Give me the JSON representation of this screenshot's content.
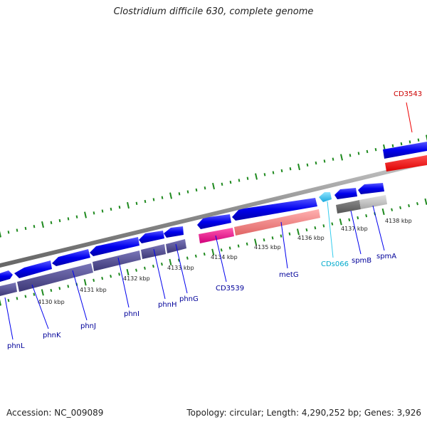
{
  "title": "Clostridium difficile 630, complete genome",
  "footer": {
    "accession": "Accession: NC_009089",
    "summary": "Topology: circular; Length: 4,290,252 bp; Genes: 3,926"
  },
  "colors": {
    "cds": "#0000ee",
    "rna": "#ff0000",
    "tick": "#1f8a1f",
    "backbone": "#8a8a8a",
    "label_blue": "#000099",
    "label_red": "#cc0000",
    "label_cyan": "#00aacc"
  },
  "scale_labels": [
    "4130 kbp",
    "4131 kbp",
    "4132 kbp",
    "4133 kbp",
    "4134 kbp",
    "4135 kbp",
    "4136 kbp",
    "4137 kbp",
    "4138 kbp"
  ],
  "gene_labels": [
    {
      "text": "phnL",
      "color": "#000099"
    },
    {
      "text": "phnK",
      "color": "#000099"
    },
    {
      "text": "phnJ",
      "color": "#000099"
    },
    {
      "text": "phnI",
      "color": "#000099"
    },
    {
      "text": "phnH",
      "color": "#000099"
    },
    {
      "text": "phnG",
      "color": "#000099"
    },
    {
      "text": "CD3539",
      "color": "#000099"
    },
    {
      "text": "metG",
      "color": "#000099"
    },
    {
      "text": "CDs066",
      "color": "#00aacc"
    },
    {
      "text": "spmB",
      "color": "#000099"
    },
    {
      "text": "spmA",
      "color": "#000099"
    },
    {
      "text": "CD3543",
      "color": "#cc0000"
    }
  ]
}
